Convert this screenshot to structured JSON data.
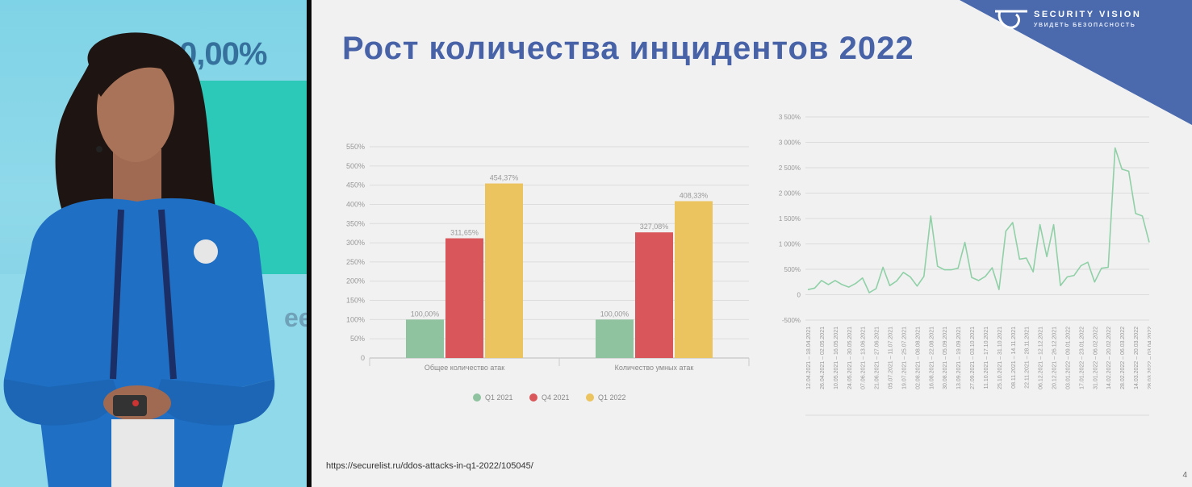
{
  "video": {
    "screen_text": "0,00%",
    "screen_partial_text": "ee"
  },
  "slide": {
    "title": "Рост количества инцидентов 2022",
    "logo": {
      "title": "SECURITY VISION",
      "tagline": "УВИДЕТЬ БЕЗОПАСНОСТЬ"
    },
    "source": "https://securelist.ru/ddos-attacks-in-q1-2022/105045/",
    "page_number": "4",
    "brand_color": "#4762a6"
  },
  "chart_data": [
    {
      "type": "bar",
      "title": "",
      "categories": [
        "Общее количество атак",
        "Количество умных атак"
      ],
      "series": [
        {
          "name": "Q1 2021",
          "color": "#8fc39f",
          "values": [
            100.0,
            100.0
          ],
          "labels": [
            "100,00%",
            "100,00%"
          ]
        },
        {
          "name": "Q4 2021",
          "color": "#d9575a",
          "values": [
            311.65,
            327.08
          ],
          "labels": [
            "311,65%",
            "327,08%"
          ]
        },
        {
          "name": "Q1 2022",
          "color": "#ebc35f",
          "values": [
            454.37,
            408.33
          ],
          "labels": [
            "454,37%",
            "408,33%"
          ]
        }
      ],
      "yticks": [
        "0",
        "50%",
        "100%",
        "150%",
        "200%",
        "250%",
        "300%",
        "350%",
        "400%",
        "450%",
        "500%",
        "550%"
      ],
      "ylim": [
        0,
        550
      ],
      "grid": true,
      "legend": "bottom"
    },
    {
      "type": "line",
      "title": "",
      "x": [
        "12.04.2021 - 18.04.2021",
        "19.04.2021 - 25.04.2021",
        "26.04.2021 - 02.05.2021",
        "03.05.2021 - 09.05.2021",
        "10.05.2021 - 16.05.2021",
        "17.05.2021 - 23.05.2021",
        "24.05.2021 - 30.05.2021",
        "31.05.2021 - 06.06.2021",
        "07.06.2021 - 13.06.2021",
        "14.06.2021 - 20.06.2021",
        "21.06.2021 - 27.06.2021",
        "28.06.2021 - 04.07.2021",
        "05.07.2021 - 11.07.2021",
        "12.07.2021 - 18.07.2021",
        "19.07.2021 - 25.07.2021",
        "26.07.2021 - 01.08.2021",
        "02.08.2021 - 08.08.2021",
        "09.08.2021 - 15.08.2021",
        "16.08.2021 - 22.08.2021",
        "23.08.2021 - 29.08.2021",
        "30.08.2021 - 05.09.2021",
        "06.09.2021 - 12.09.2021",
        "13.09.2021 - 19.09.2021",
        "20.09.2021 - 26.09.2021",
        "27.09.2021 - 03.10.2021",
        "04.10.2021 - 10.10.2021",
        "11.10.2021 - 17.10.2021",
        "18.10.2021 - 24.10.2021",
        "25.10.2021 - 31.10.2021",
        "01.11.2021 - 07.11.2021",
        "08.11.2021 - 14.11.2021",
        "15.11.2021 - 21.11.2021",
        "22.11.2021 - 28.11.2021",
        "29.11.2021 - 05.12.2021",
        "06.12.2021 - 12.12.2021",
        "13.12.2021 - 19.12.2021",
        "20.12.2021 - 26.12.2021",
        "27.12.2021 - 02.01.2022",
        "03.01.2022 - 09.01.2022",
        "10.01.2022 - 16.01.2022",
        "17.01.2022 - 23.01.2022",
        "24.01.2022 - 30.01.2022",
        "31.01.2022 - 06.02.2022",
        "07.02.2022 - 13.02.2022",
        "14.02.2022 - 20.02.2022",
        "21.02.2022 - 27.02.2022",
        "28.02.2022 - 06.03.2022",
        "07.03.2022 - 13.03.2022",
        "14.03.2022 - 20.03.2022",
        "21.03.2022 - 27.03.2022",
        "28.03.2022 - 03.04.2022"
      ],
      "xticks": [
        "12.04.2021 – 18.04.2021",
        "26.04.2021 – 02.05.2021",
        "10.05.2021 – 16.05.2021",
        "24.05.2021 – 30.05.2021",
        "07.06.2021 – 13.06.2021",
        "21.06.2021 – 27.06.2021",
        "05.07.2021 – 11.07.2021",
        "19.07.2021 – 25.07.2021",
        "02.08.2021 – 08.08.2021",
        "16.08.2021 – 22.08.2021",
        "30.08.2021 – 05.09.2021",
        "13.09.2021 – 19.09.2021",
        "27.09.2021 – 03.10.2021",
        "11.10.2021 – 17.10.2021",
        "25.10.2021 – 31.10.2021",
        "08.11.2021 – 14.11.2021",
        "22.11.2021 – 28.11.2021",
        "06.12.2021 – 12.12.2021",
        "20.12.2021 – 26.12.2021",
        "03.01.2022 – 09.01.2022",
        "17.01.2022 – 23.01.2022",
        "31.01.2022 – 06.02.2022",
        "14.02.2022 – 20.02.2022",
        "28.02.2022 – 06.03.2022",
        "14.03.2022 – 20.03.2022",
        "28.03.2022 – 03.04.2022"
      ],
      "series": [
        {
          "color": "#8fd0a6",
          "values": [
            100,
            130,
            280,
            200,
            280,
            200,
            150,
            220,
            330,
            40,
            120,
            540,
            180,
            270,
            440,
            350,
            170,
            360,
            1550,
            560,
            490,
            490,
            520,
            1030,
            340,
            280,
            360,
            530,
            100,
            1250,
            1420,
            700,
            720,
            450,
            1380,
            750,
            1380,
            180,
            350,
            380,
            570,
            640,
            250,
            520,
            540,
            2890,
            2470,
            2430,
            1600,
            1550,
            1030
          ]
        }
      ],
      "yticks": [
        "-500%",
        "0",
        "500%",
        "1 000%",
        "1 500%",
        "2 000%",
        "2 500%",
        "3 000%",
        "3 500%"
      ],
      "ylim": [
        -500,
        3500
      ],
      "grid": true
    }
  ]
}
